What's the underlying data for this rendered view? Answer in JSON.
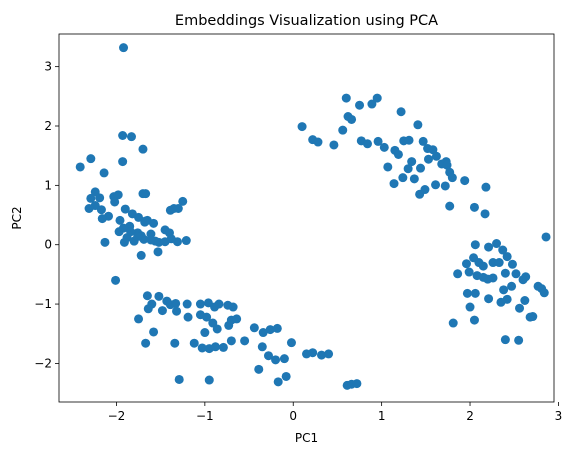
{
  "chart_data": {
    "type": "scatter",
    "title": "Embeddings Visualization using PCA",
    "xlabel": "PC1",
    "ylabel": "PC2",
    "xlim": [
      -2.65,
      2.95
    ],
    "ylim": [
      -2.65,
      3.55
    ],
    "xticks": [
      -2,
      -1,
      0,
      1,
      2,
      3
    ],
    "yticks": [
      -2,
      -1,
      0,
      1,
      2,
      3
    ],
    "xtick_labels": [
      "−2",
      "−1",
      "0",
      "1",
      "2",
      "3"
    ],
    "ytick_labels": [
      "−2",
      "−1",
      "0",
      "1",
      "2",
      "3"
    ],
    "grid": false,
    "marker_color": "#1f77b4",
    "series": [
      {
        "points": [
          [
            -1.92,
            3.32
          ],
          [
            -2.29,
            1.45
          ],
          [
            -2.41,
            1.31
          ],
          [
            -2.14,
            1.21
          ],
          [
            -1.93,
            1.84
          ],
          [
            -1.83,
            1.82
          ],
          [
            -1.93,
            1.4
          ],
          [
            -1.7,
            1.61
          ],
          [
            -2.24,
            0.89
          ],
          [
            -2.19,
            0.79
          ],
          [
            -2.03,
            0.81
          ],
          [
            -1.98,
            0.84
          ],
          [
            -1.67,
            0.86
          ],
          [
            -1.7,
            0.86
          ],
          [
            -2.29,
            0.78
          ],
          [
            -2.24,
            0.66
          ],
          [
            -2.31,
            0.61
          ],
          [
            -2.17,
            0.59
          ],
          [
            -2.02,
            0.72
          ],
          [
            -1.9,
            0.6
          ],
          [
            -1.82,
            0.52
          ],
          [
            -2.09,
            0.48
          ],
          [
            -2.16,
            0.44
          ],
          [
            -1.96,
            0.41
          ],
          [
            -1.85,
            0.31
          ],
          [
            -1.75,
            0.46
          ],
          [
            -1.68,
            0.38
          ],
          [
            -1.65,
            0.41
          ],
          [
            -1.58,
            0.36
          ],
          [
            -1.39,
            0.58
          ],
          [
            -1.35,
            0.61
          ],
          [
            -1.3,
            0.61
          ],
          [
            -1.25,
            0.73
          ],
          [
            -1.97,
            0.22
          ],
          [
            -1.92,
            0.28
          ],
          [
            -1.88,
            0.12
          ],
          [
            -1.8,
            0.06
          ],
          [
            -1.76,
            0.2
          ],
          [
            -1.72,
            0.15
          ],
          [
            -1.69,
            0.09
          ],
          [
            -1.61,
            0.18
          ],
          [
            -1.56,
            0.06
          ],
          [
            -1.45,
            0.25
          ],
          [
            -1.4,
            0.2
          ],
          [
            -1.31,
            0.05
          ],
          [
            -1.21,
            0.07
          ],
          [
            -2.13,
            0.04
          ],
          [
            -1.91,
            0.04
          ],
          [
            -1.67,
            0.4
          ],
          [
            -1.76,
            0.14
          ],
          [
            -1.84,
            0.22
          ],
          [
            -1.61,
            0.08
          ],
          [
            -1.52,
            0.04
          ],
          [
            -1.45,
            0.05
          ],
          [
            -1.38,
            0.1
          ],
          [
            -1.53,
            -0.12
          ],
          [
            -1.72,
            -0.18
          ],
          [
            -2.01,
            -0.6
          ],
          [
            -1.65,
            -0.86
          ],
          [
            -1.52,
            -0.87
          ],
          [
            -1.6,
            -1.0
          ],
          [
            -1.43,
            -0.95
          ],
          [
            -1.39,
            -1.01
          ],
          [
            -1.33,
            -0.99
          ],
          [
            -1.2,
            -1.0
          ],
          [
            -1.05,
            -1.0
          ],
          [
            -0.96,
            -0.98
          ],
          [
            -0.84,
            -1.0
          ],
          [
            -0.74,
            -1.02
          ],
          [
            -0.68,
            -1.05
          ],
          [
            -0.89,
            -1.05
          ],
          [
            -1.64,
            -1.08
          ],
          [
            -1.75,
            -1.25
          ],
          [
            -1.48,
            -1.11
          ],
          [
            -1.32,
            -1.12
          ],
          [
            -1.19,
            -1.22
          ],
          [
            -1.05,
            -1.18
          ],
          [
            -0.98,
            -1.22
          ],
          [
            -0.91,
            -1.32
          ],
          [
            -0.86,
            -1.42
          ],
          [
            -0.73,
            -1.36
          ],
          [
            -0.7,
            -1.27
          ],
          [
            -0.64,
            -1.25
          ],
          [
            -0.44,
            -1.4
          ],
          [
            -0.34,
            -1.48
          ],
          [
            -0.26,
            -1.43
          ],
          [
            -0.18,
            -1.41
          ],
          [
            -1.0,
            -1.48
          ],
          [
            -0.95,
            -1.75
          ],
          [
            -0.88,
            -1.72
          ],
          [
            -0.79,
            -1.73
          ],
          [
            -0.7,
            -1.62
          ],
          [
            -0.55,
            -1.62
          ],
          [
            -0.35,
            -1.72
          ],
          [
            -0.28,
            -1.87
          ],
          [
            -0.2,
            -1.94
          ],
          [
            -0.1,
            -1.92
          ],
          [
            -0.02,
            -1.65
          ],
          [
            -0.39,
            -2.1
          ],
          [
            -1.67,
            -1.66
          ],
          [
            -1.34,
            -1.66
          ],
          [
            -1.12,
            -1.66
          ],
          [
            -1.58,
            -1.47
          ],
          [
            -1.03,
            -1.74
          ],
          [
            -1.29,
            -2.27
          ],
          [
            -0.95,
            -2.28
          ],
          [
            -0.17,
            -2.31
          ],
          [
            -0.08,
            -2.22
          ],
          [
            0.15,
            -1.84
          ],
          [
            0.22,
            -1.82
          ],
          [
            0.32,
            -1.86
          ],
          [
            0.4,
            -1.84
          ],
          [
            0.61,
            -2.37
          ],
          [
            0.66,
            -2.35
          ],
          [
            0.72,
            -2.34
          ],
          [
            0.1,
            1.99
          ],
          [
            0.22,
            1.77
          ],
          [
            0.28,
            1.73
          ],
          [
            0.46,
            1.68
          ],
          [
            0.56,
            1.93
          ],
          [
            0.62,
            2.16
          ],
          [
            0.66,
            2.11
          ],
          [
            0.75,
            2.35
          ],
          [
            0.6,
            2.47
          ],
          [
            0.89,
            2.37
          ],
          [
            0.95,
            2.47
          ],
          [
            0.77,
            1.75
          ],
          [
            0.84,
            1.7
          ],
          [
            0.96,
            1.74
          ],
          [
            1.15,
            1.59
          ],
          [
            1.19,
            1.52
          ],
          [
            1.03,
            1.64
          ],
          [
            1.22,
            2.24
          ],
          [
            1.25,
            1.75
          ],
          [
            1.31,
            1.76
          ],
          [
            1.41,
            2.02
          ],
          [
            1.47,
            1.74
          ],
          [
            1.52,
            1.62
          ],
          [
            1.58,
            1.6
          ],
          [
            1.62,
            1.49
          ],
          [
            1.68,
            1.36
          ],
          [
            1.73,
            1.4
          ],
          [
            1.74,
            1.34
          ],
          [
            1.77,
            1.22
          ],
          [
            1.53,
            1.44
          ],
          [
            1.44,
            1.29
          ],
          [
            1.34,
            1.4
          ],
          [
            1.3,
            1.28
          ],
          [
            1.24,
            1.13
          ],
          [
            1.14,
            1.03
          ],
          [
            1.07,
            1.31
          ],
          [
            1.37,
            1.11
          ],
          [
            1.49,
            0.93
          ],
          [
            1.43,
            0.85
          ],
          [
            1.61,
            1.01
          ],
          [
            1.72,
            0.99
          ],
          [
            1.8,
            1.13
          ],
          [
            1.94,
            1.08
          ],
          [
            2.18,
            0.97
          ],
          [
            1.77,
            0.65
          ],
          [
            2.05,
            0.63
          ],
          [
            2.17,
            0.52
          ],
          [
            2.06,
            0.0
          ],
          [
            2.04,
            -0.22
          ],
          [
            2.21,
            -0.04
          ],
          [
            2.3,
            0.02
          ],
          [
            2.37,
            -0.09
          ],
          [
            2.42,
            -0.2
          ],
          [
            1.96,
            -0.32
          ],
          [
            2.1,
            -0.3
          ],
          [
            2.15,
            -0.36
          ],
          [
            2.26,
            -0.3
          ],
          [
            2.33,
            -0.3
          ],
          [
            2.48,
            -0.33
          ],
          [
            1.86,
            -0.49
          ],
          [
            1.99,
            -0.46
          ],
          [
            2.08,
            -0.52
          ],
          [
            2.15,
            -0.55
          ],
          [
            2.26,
            -0.56
          ],
          [
            2.4,
            -0.48
          ],
          [
            2.52,
            -0.49
          ],
          [
            2.63,
            -0.54
          ],
          [
            2.6,
            -0.59
          ],
          [
            2.77,
            -0.7
          ],
          [
            2.81,
            -0.74
          ],
          [
            2.84,
            -0.81
          ],
          [
            2.47,
            -0.7
          ],
          [
            2.38,
            -0.76
          ],
          [
            2.42,
            -0.92
          ],
          [
            1.97,
            -0.82
          ],
          [
            2.06,
            -0.82
          ],
          [
            2.21,
            -0.91
          ],
          [
            2.35,
            -0.97
          ],
          [
            2.62,
            -0.94
          ],
          [
            2.56,
            -1.07
          ],
          [
            2.71,
            -1.21
          ],
          [
            2.0,
            -1.05
          ],
          [
            2.05,
            -1.27
          ],
          [
            1.81,
            -1.32
          ],
          [
            2.68,
            -1.22
          ],
          [
            2.4,
            -1.6
          ],
          [
            2.55,
            -1.61
          ],
          [
            2.86,
            0.13
          ],
          [
            2.2,
            -0.58
          ]
        ]
      }
    ]
  }
}
